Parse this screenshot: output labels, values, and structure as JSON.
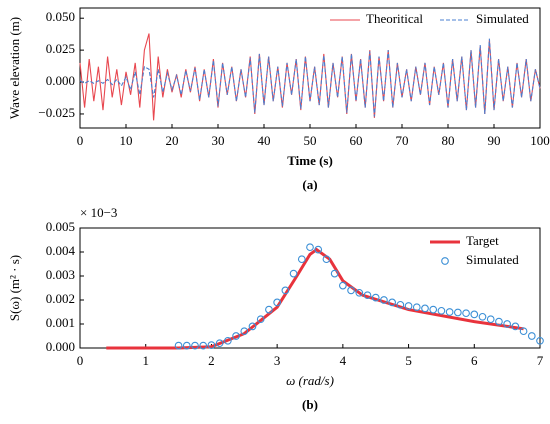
{
  "chart_data": [
    {
      "type": "line",
      "ylabel": "Wave elevation (m)",
      "xlabel": "Time (s)",
      "caption": "(a)",
      "xlim": [
        0,
        100
      ],
      "xticks": [
        0,
        10,
        20,
        30,
        40,
        50,
        60,
        70,
        80,
        90,
        100
      ],
      "ylim": [
        -0.036,
        0.058
      ],
      "yticks": [
        {
          "value": -0.025,
          "label": "−0.025"
        },
        {
          "value": 0,
          "label": "0.000"
        },
        {
          "value": 0.025,
          "label": "0.025"
        },
        {
          "value": 0.05,
          "label": "0.050"
        }
      ],
      "legend": "upper right",
      "legend_layout": "horizontal",
      "x": [
        0,
        1,
        2,
        3,
        4,
        5,
        6,
        7,
        8,
        9,
        10,
        11,
        12,
        13,
        14,
        15,
        16,
        17,
        18,
        19,
        20,
        21,
        22,
        23,
        24,
        25,
        26,
        27,
        28,
        29,
        30,
        31,
        32,
        33,
        34,
        35,
        36,
        37,
        38,
        39,
        40,
        41,
        42,
        43,
        44,
        45,
        46,
        47,
        48,
        49,
        50,
        51,
        52,
        53,
        54,
        55,
        56,
        57,
        58,
        59,
        60,
        61,
        62,
        63,
        64,
        65,
        66,
        67,
        68,
        69,
        70,
        71,
        72,
        73,
        74,
        75,
        76,
        77,
        78,
        79,
        80,
        81,
        82,
        83,
        84,
        85,
        86,
        87,
        88,
        89,
        90,
        91,
        92,
        93,
        94,
        95,
        96,
        97,
        98,
        99,
        100
      ],
      "series": [
        {
          "name": "Theoritical",
          "color": "#e8474f",
          "linestyle": "solid",
          "values": [
            0.015,
            -0.02,
            0.018,
            -0.015,
            0.012,
            -0.022,
            0.02,
            -0.012,
            0.01,
            -0.018,
            0.008,
            -0.01,
            0.015,
            -0.02,
            0.025,
            0.038,
            -0.03,
            0.02,
            -0.012,
            0.01,
            -0.008,
            0.006,
            -0.012,
            0.01,
            -0.008,
            0.012,
            -0.015,
            0.01,
            -0.012,
            0.018,
            -0.02,
            0.015,
            -0.01,
            0.012,
            -0.015,
            0.01,
            -0.012,
            0.02,
            -0.025,
            0.022,
            -0.018,
            0.02,
            -0.015,
            0.012,
            -0.02,
            0.015,
            -0.01,
            0.018,
            -0.022,
            0.02,
            -0.015,
            0.012,
            -0.018,
            0.022,
            -0.02,
            0.015,
            -0.012,
            0.02,
            -0.025,
            0.022,
            -0.015,
            0.018,
            -0.02,
            0.025,
            -0.028,
            0.02,
            -0.015,
            0.025,
            -0.02,
            0.015,
            -0.012,
            0.01,
            -0.015,
            0.012,
            -0.01,
            0.015,
            -0.018,
            0.012,
            -0.01,
            0.015,
            -0.02,
            0.018,
            -0.015,
            0.02,
            -0.022,
            0.025,
            -0.02,
            0.028,
            -0.025,
            0.033,
            -0.022,
            0.018,
            -0.015,
            0.012,
            -0.02,
            0.015,
            -0.012,
            0.018,
            -0.015,
            0.01,
            -0.005
          ]
        },
        {
          "name": "Simulated",
          "color": "#4a7fd0",
          "linestyle": "dashed",
          "values": [
            0.001,
            -0.001,
            0.001,
            -0.001,
            0.001,
            -0.001,
            0.002,
            -0.002,
            0.002,
            -0.003,
            0.004,
            -0.006,
            0.008,
            -0.01,
            0.012,
            0.01,
            -0.012,
            0.01,
            -0.008,
            0.007,
            -0.006,
            0.005,
            -0.01,
            0.009,
            -0.007,
            0.011,
            -0.014,
            0.01,
            -0.012,
            0.017,
            -0.019,
            0.015,
            -0.01,
            0.012,
            -0.015,
            0.01,
            -0.012,
            0.019,
            -0.024,
            0.022,
            -0.018,
            0.02,
            -0.015,
            0.012,
            -0.019,
            0.015,
            -0.01,
            0.018,
            -0.021,
            0.02,
            -0.015,
            0.012,
            -0.018,
            0.021,
            -0.02,
            0.015,
            -0.012,
            0.02,
            -0.024,
            0.022,
            -0.015,
            0.018,
            -0.02,
            0.024,
            -0.027,
            0.02,
            -0.015,
            0.025,
            -0.02,
            0.015,
            -0.012,
            0.01,
            -0.015,
            0.012,
            -0.01,
            0.015,
            -0.018,
            0.012,
            -0.01,
            0.015,
            -0.02,
            0.018,
            -0.015,
            0.02,
            -0.022,
            0.025,
            -0.02,
            0.029,
            -0.025,
            0.034,
            -0.022,
            0.018,
            -0.015,
            0.012,
            -0.02,
            0.015,
            -0.012,
            0.018,
            -0.015,
            0.01,
            -0.005
          ]
        }
      ]
    },
    {
      "type": "line",
      "ylabel": "S(ω) (m² · s)",
      "xlabel": "ω (rad/s)",
      "caption": "(b)",
      "offset_text": "× 10−3",
      "xlim": [
        0,
        7
      ],
      "xticks": [
        0,
        1,
        2,
        3,
        4,
        5,
        6,
        7
      ],
      "ylim": [
        0,
        0.005
      ],
      "yticks": [
        {
          "value": 0,
          "label": "0.000"
        },
        {
          "value": 0.001,
          "label": "0.001"
        },
        {
          "value": 0.002,
          "label": "0.002"
        },
        {
          "value": 0.003,
          "label": "0.003"
        },
        {
          "value": 0.004,
          "label": "0.004"
        },
        {
          "value": 0.005,
          "label": "0.005"
        }
      ],
      "legend": "upper right",
      "legend_layout": "vertical",
      "series": [
        {
          "name": "Target",
          "color": "#e8333c",
          "linestyle": "solid",
          "x": [
            0.4,
            1.5,
            2,
            2.5,
            3,
            3.3,
            3.5,
            3.6,
            3.8,
            4,
            4.3,
            5,
            6,
            6.75
          ],
          "values": [
            0,
            0,
            5e-05,
            0.0006,
            0.0017,
            0.003,
            0.0039,
            0.0041,
            0.0037,
            0.0028,
            0.0022,
            0.0016,
            0.0011,
            0.0008
          ]
        },
        {
          "name": "Simulated",
          "color": "#3b8fd6",
          "marker": "circle",
          "x": [
            1.5,
            1.625,
            1.75,
            1.875,
            2,
            2.125,
            2.25,
            2.375,
            2.5,
            2.625,
            2.75,
            2.875,
            3,
            3.125,
            3.25,
            3.375,
            3.5,
            3.625,
            3.75,
            3.875,
            4,
            4.125,
            4.25,
            4.375,
            4.5,
            4.625,
            4.75,
            4.875,
            5,
            5.125,
            5.25,
            5.375,
            5.5,
            5.625,
            5.75,
            5.875,
            6,
            6.125,
            6.25,
            6.375,
            6.5,
            6.625,
            6.75,
            6.875,
            7
          ],
          "values": [
            0.0001,
            0.0001,
            0.0001,
            0.0001,
            0.00012,
            0.0002,
            0.0003,
            0.0005,
            0.0007,
            0.0009,
            0.0012,
            0.0016,
            0.0019,
            0.0024,
            0.0031,
            0.0037,
            0.0042,
            0.0041,
            0.0037,
            0.0031,
            0.0026,
            0.0024,
            0.0023,
            0.0022,
            0.0021,
            0.002,
            0.0019,
            0.0018,
            0.00175,
            0.0017,
            0.00165,
            0.0016,
            0.00155,
            0.0015,
            0.00148,
            0.00145,
            0.0014,
            0.0013,
            0.0012,
            0.0011,
            0.001,
            0.0009,
            0.0007,
            0.0005,
            0.0003
          ]
        }
      ]
    }
  ]
}
